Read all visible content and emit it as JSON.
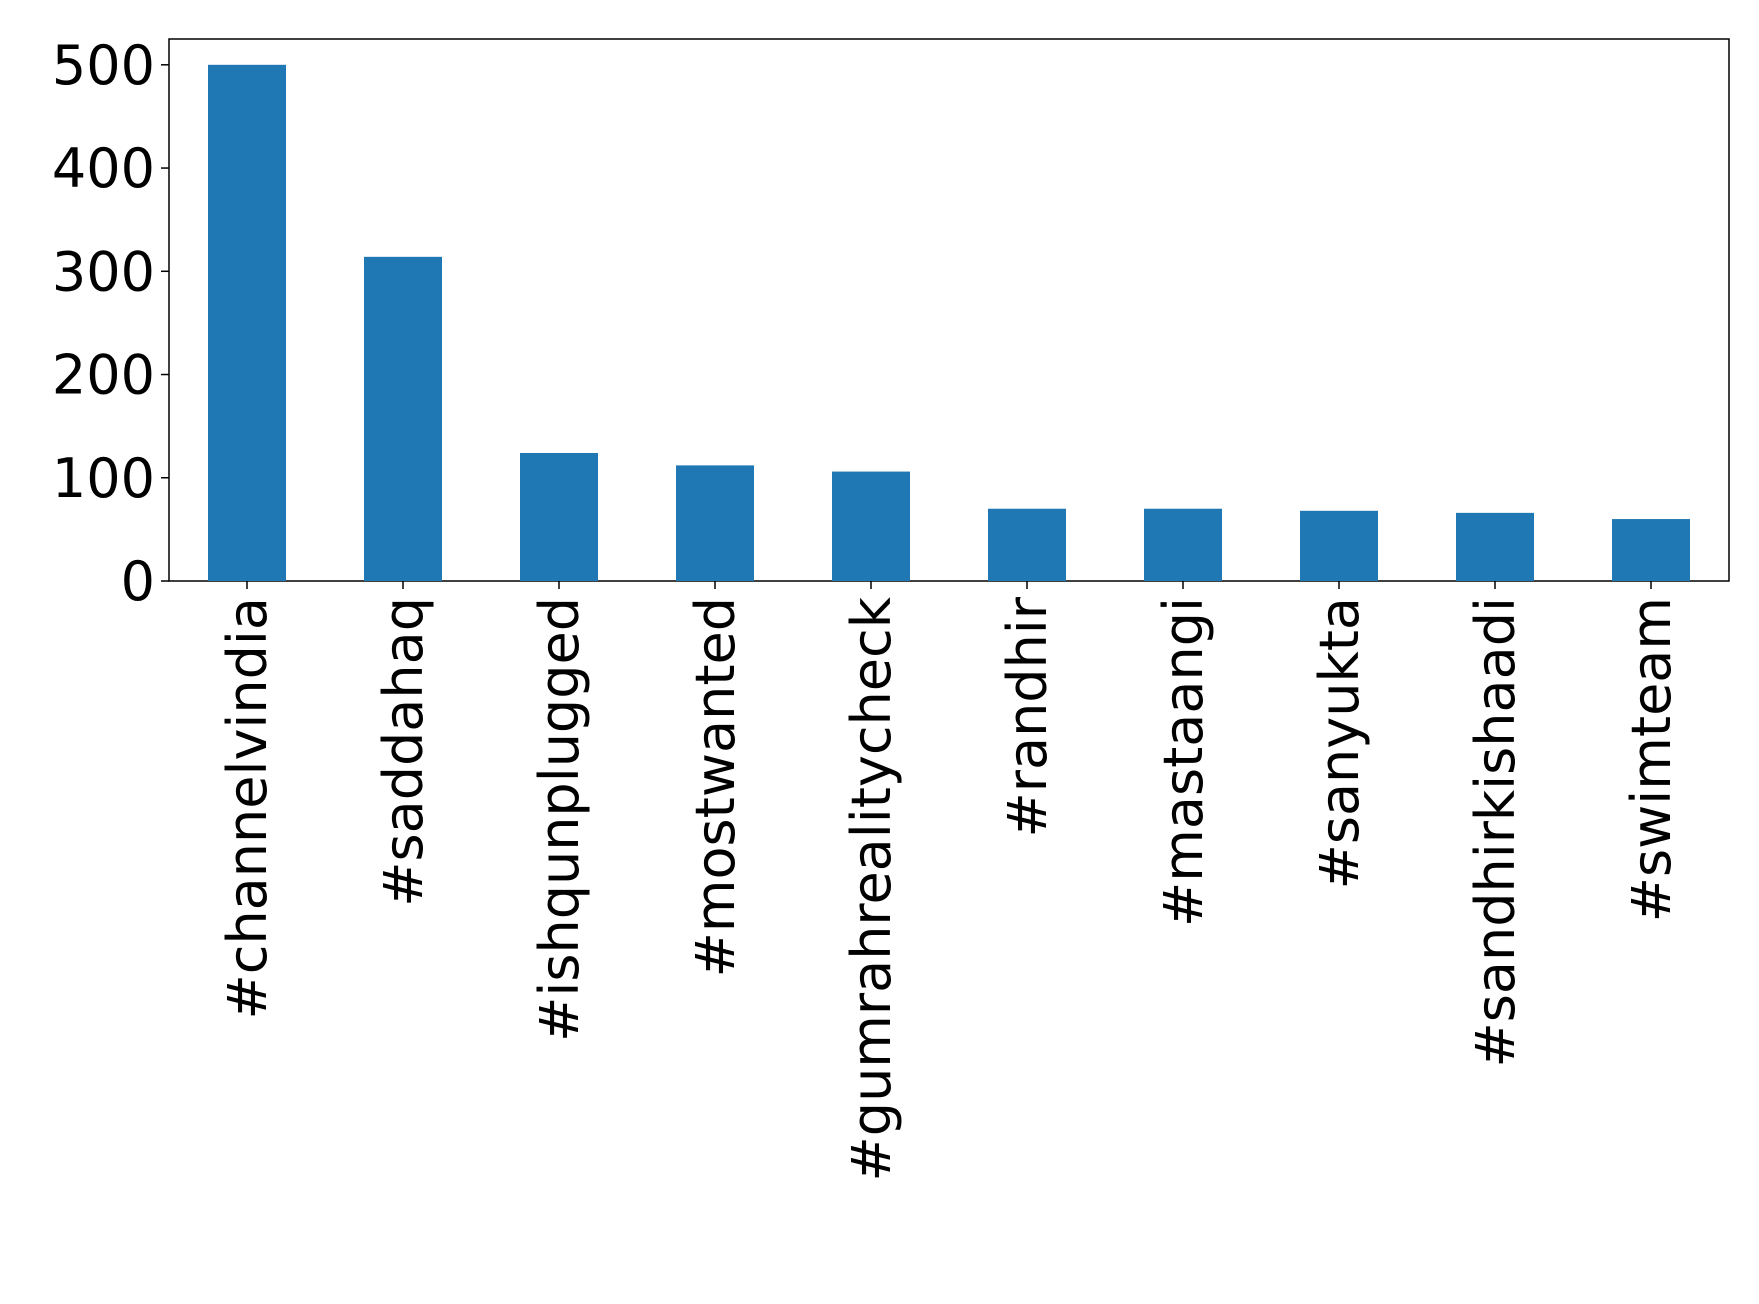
{
  "chart_data": {
    "type": "bar",
    "categories": [
      "#channelvindia",
      "#saddahaq",
      "#ishqunplugged",
      "#mostwanted",
      "#gumrahrealitycheck",
      "#randhir",
      "#mastaangi",
      "#sanyukta",
      "#sandhirkishaadi",
      "#swimteam"
    ],
    "values": [
      500,
      314,
      124,
      112,
      106,
      70,
      70,
      68,
      66,
      60
    ],
    "color": "#1f77b4",
    "ylim": [
      0,
      525
    ],
    "yticks": [
      0,
      100,
      200,
      300,
      400,
      500
    ],
    "grid": false
  }
}
